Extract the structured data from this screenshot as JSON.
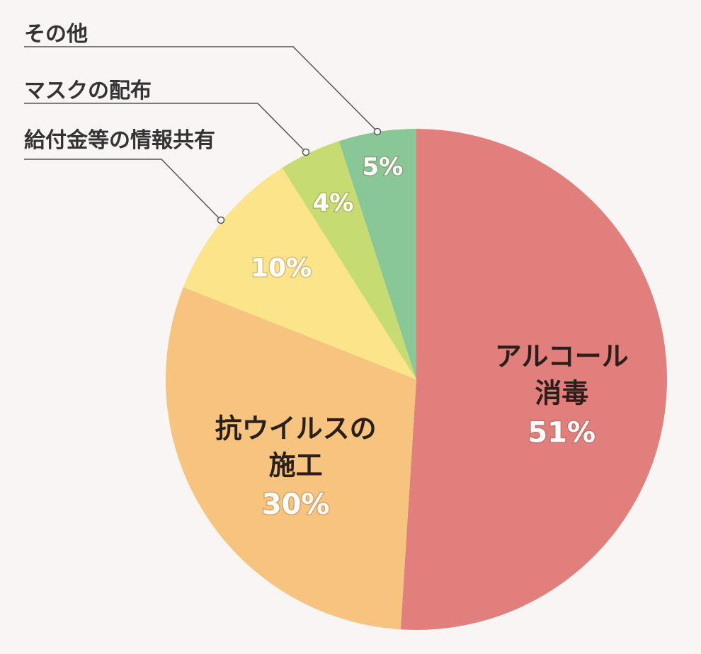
{
  "chart_data": {
    "type": "pie",
    "slices": [
      {
        "lines": [
          "アルコール",
          "消毒"
        ],
        "value": 51,
        "label": "51%",
        "color": "#e07f7c"
      },
      {
        "lines": [
          "抗ウイルスの",
          "施工"
        ],
        "value": 30,
        "label": "30%",
        "color": "#f6c47f"
      },
      {
        "lines": [
          "給付金等の情報共有"
        ],
        "value": 10,
        "label": "10%",
        "color": "#fce48b"
      },
      {
        "lines": [
          "マスクの配布"
        ],
        "value": 4,
        "label": "4%",
        "color": "#c6dc73"
      },
      {
        "lines": [
          "その他"
        ],
        "value": 5,
        "label": "5%",
        "color": "#8ac796"
      }
    ],
    "label_line_color": "#555555"
  }
}
